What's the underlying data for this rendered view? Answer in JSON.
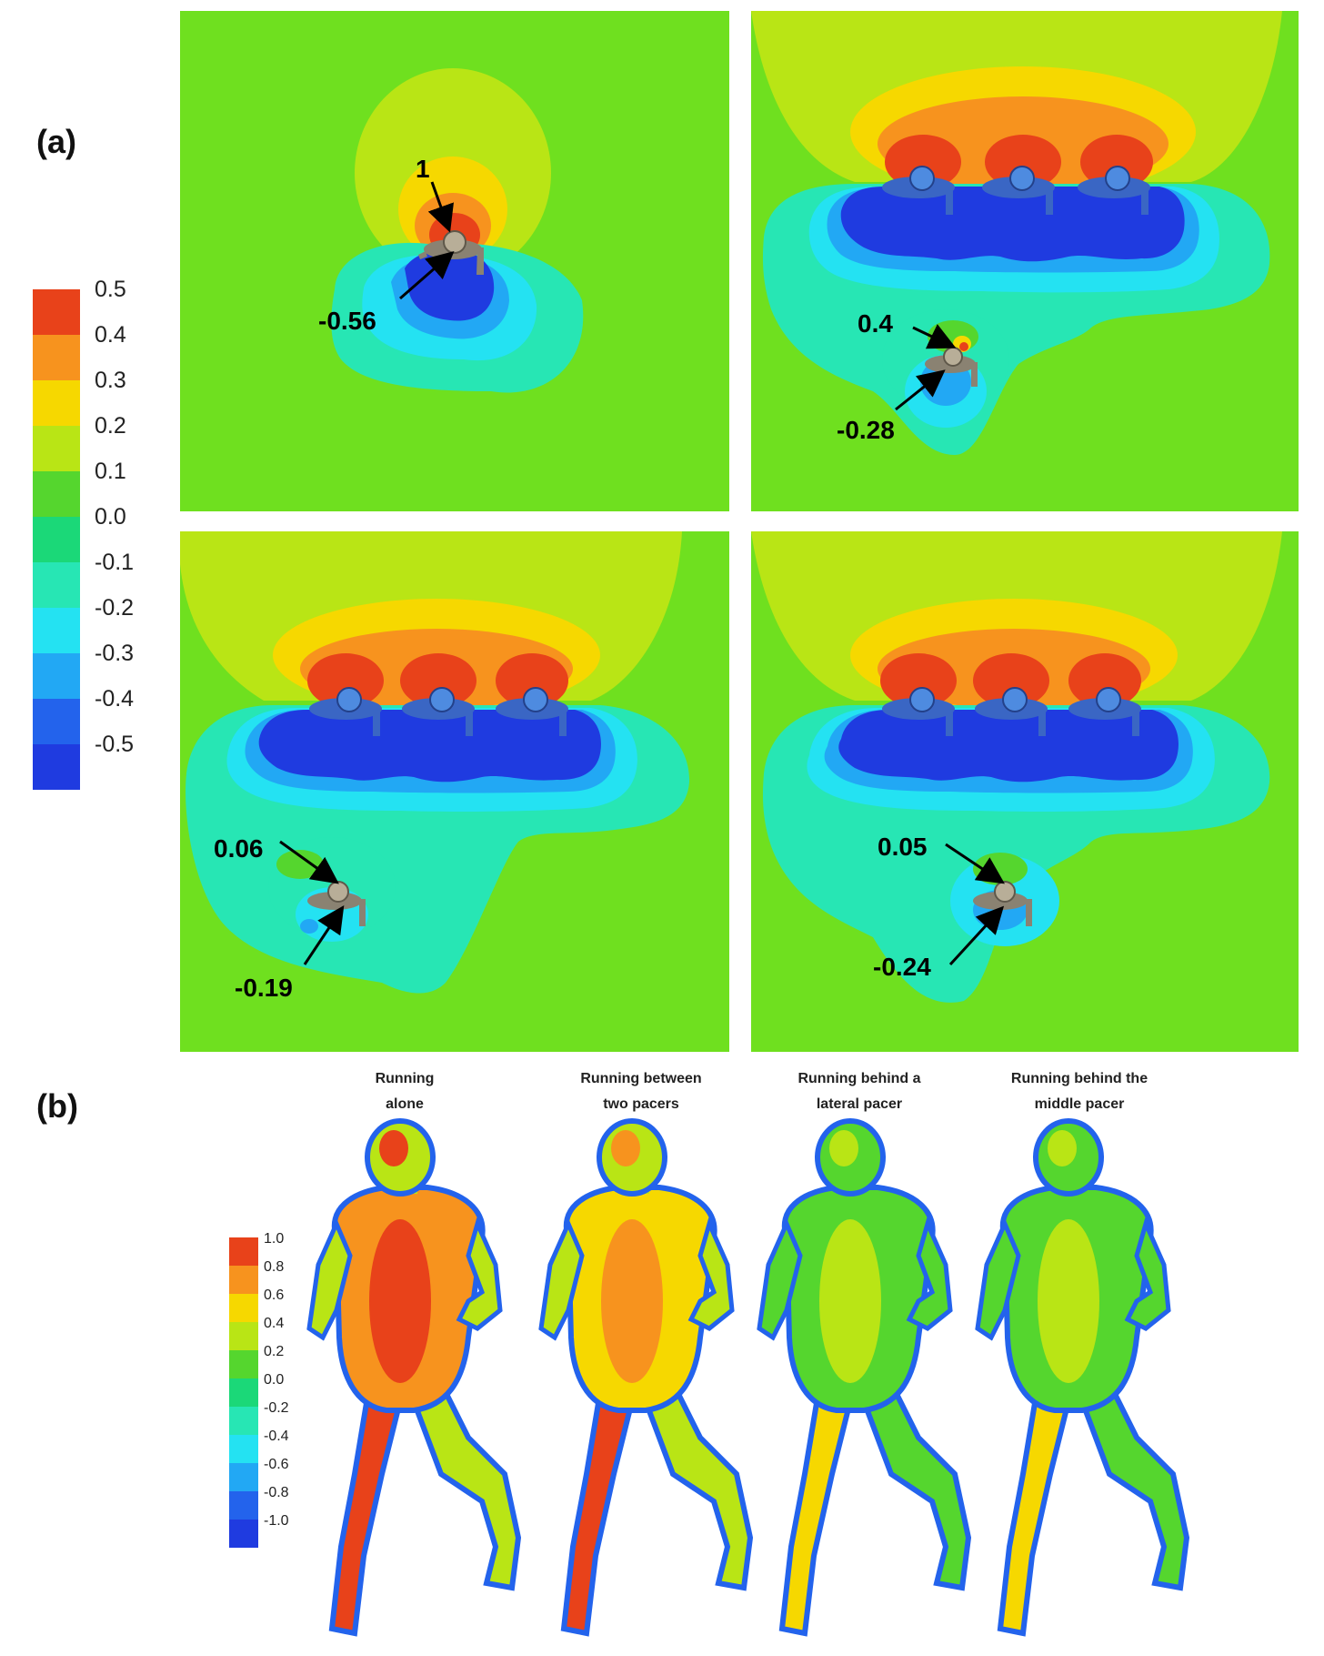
{
  "figure": {
    "panel_a_label": "(a)",
    "panel_b_label": "(b)"
  },
  "colorbar_a": {
    "ticks": [
      "0.5",
      "0.4",
      "0.3",
      "0.2",
      "0.1",
      "0.0",
      "-0.1",
      "-0.2",
      "-0.3",
      "-0.4",
      "-0.5"
    ],
    "colors": [
      "#e8421a",
      "#f7931e",
      "#f6d800",
      "#b9e515",
      "#55d62e",
      "#1bd878",
      "#27e6b4",
      "#24e2f2",
      "#22a8f4",
      "#2363ec",
      "#1f3be0"
    ]
  },
  "colorbar_b": {
    "ticks": [
      "1.0",
      "0.8",
      "0.6",
      "0.4",
      "0.2",
      "0.0",
      "-0.2",
      "-0.4",
      "-0.6",
      "-0.8",
      "-1.0"
    ],
    "colors": [
      "#e8421a",
      "#f7931e",
      "#f6d800",
      "#b9e515",
      "#55d62e",
      "#1bd878",
      "#27e6b4",
      "#24e2f2",
      "#22a8f4",
      "#2363ec",
      "#1f3be0"
    ]
  },
  "contour_colors": {
    "background": "#6fe01f",
    "outer_high": "#b9e515",
    "mid_high": "#f6d800",
    "high": "#f7931e",
    "peak": "#e8421a",
    "wake_outer": "#27e6b4",
    "wake_mid": "#24e2f2",
    "wake_inner": "#22a8f4",
    "wake_core": "#1f3be0"
  },
  "annotations": {
    "a1": {
      "top": "1",
      "bottom": "-0.56"
    },
    "a2": {
      "top": "0.4",
      "bottom": "-0.28"
    },
    "a3": {
      "top": "0.06",
      "bottom": "-0.19"
    },
    "a4": {
      "top": "0.05",
      "bottom": "-0.24"
    }
  },
  "captions_b": [
    {
      "line1": "Running",
      "line2": "alone"
    },
    {
      "line1": "Running between",
      "line2": "two pacers"
    },
    {
      "line1": "Running behind a",
      "line2": "lateral pacer"
    },
    {
      "line1": "Running behind the",
      "line2": "middle pacer"
    }
  ]
}
